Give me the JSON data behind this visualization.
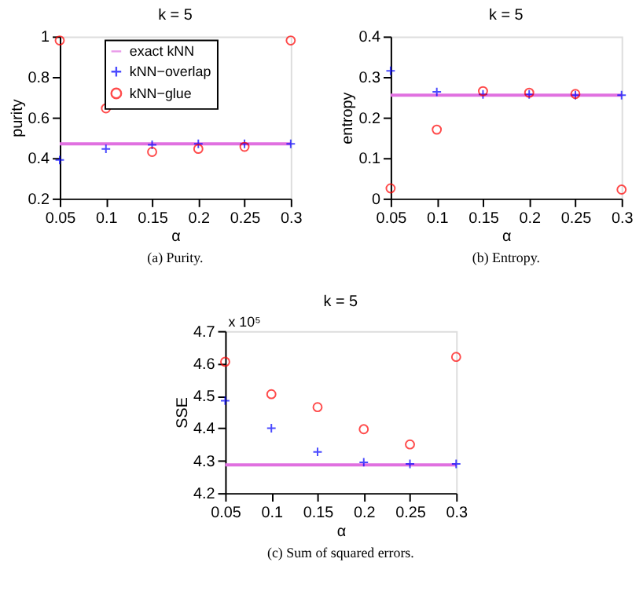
{
  "chart_data": [
    {
      "type": "scatter",
      "title": "k = 5",
      "xlabel": "α",
      "ylabel": "purity",
      "xlim": [
        0.05,
        0.3
      ],
      "xticks": [
        0.05,
        0.1,
        0.15,
        0.2,
        0.25,
        0.3
      ],
      "ylim": [
        0.2,
        1
      ],
      "yticks": [
        0.2,
        0.4,
        0.6,
        0.8,
        1
      ],
      "grid": false,
      "legend": "top",
      "x": [
        0.05,
        0.1,
        0.15,
        0.2,
        0.25,
        0.3
      ],
      "series": [
        {
          "name": "exact kNN",
          "type": "line",
          "color": "#e070e0",
          "marker": "none",
          "line_style": "solid",
          "values": [
            0.47,
            0.47,
            0.47,
            0.47,
            0.47,
            0.47
          ]
        },
        {
          "name": "kNN−overlap",
          "color": "#0000ff",
          "marker": "cross",
          "values": [
            0.39,
            0.445,
            0.465,
            0.47,
            0.47,
            0.47
          ]
        },
        {
          "name": "kNN−glue",
          "color": "#ff0000",
          "marker": "circle",
          "values": [
            0.98,
            0.645,
            0.43,
            0.445,
            0.455,
            0.98
          ]
        }
      ],
      "annotations": [
        "(a)  Purity."
      ]
    },
    {
      "type": "scatter",
      "title": "k = 5",
      "xlabel": "α",
      "ylabel": "entropy",
      "xlim": [
        0.05,
        0.3
      ],
      "xticks": [
        0.05,
        0.1,
        0.15,
        0.2,
        0.25,
        0.3
      ],
      "ylim": [
        0,
        0.4
      ],
      "yticks": [
        0,
        0.1,
        0.2,
        0.3,
        0.4
      ],
      "grid": false,
      "legend": "bottom",
      "x": [
        0.05,
        0.1,
        0.15,
        0.2,
        0.25,
        0.3
      ],
      "series": [
        {
          "name": "exact kNN",
          "type": "line",
          "color": "#e070e0",
          "marker": "none",
          "line_style": "solid",
          "values": [
            0.255,
            0.255,
            0.255,
            0.255,
            0.255,
            0.255
          ]
        },
        {
          "name": "kNN−overlap",
          "color": "#0000ff",
          "marker": "cross",
          "values": [
            0.315,
            0.263,
            0.257,
            0.257,
            0.255,
            0.255
          ]
        },
        {
          "name": "kNN−glue",
          "color": "#ff0000",
          "marker": "circle",
          "values": [
            0.025,
            0.17,
            0.265,
            0.261,
            0.258,
            0.022
          ]
        }
      ],
      "annotations": [
        "(b)  Entropy."
      ]
    },
    {
      "type": "scatter",
      "title": "k = 5",
      "xlabel": "α",
      "ylabel": "SSE",
      "xlim": [
        0.05,
        0.3
      ],
      "xticks": [
        0.05,
        0.1,
        0.15,
        0.2,
        0.25,
        0.3
      ],
      "ylim": [
        4.2,
        4.7
      ],
      "yticks": [
        4.2,
        4.3,
        4.4,
        4.5,
        4.6,
        4.7
      ],
      "grid": false,
      "legend": "top",
      "x": [
        0.05,
        0.1,
        0.15,
        0.2,
        0.25,
        0.3
      ],
      "series": [
        {
          "name": "exact kNN",
          "type": "line",
          "color": "#e070e0",
          "marker": "none",
          "line_style": "solid",
          "values": [
            4.287,
            4.287,
            4.287,
            4.287,
            4.287,
            4.287
          ]
        },
        {
          "name": "kNN−overlap",
          "color": "#0000ff",
          "marker": "cross",
          "values": [
            4.485,
            4.4,
            4.327,
            4.295,
            4.29,
            4.29
          ]
        },
        {
          "name": "kNN−glue",
          "color": "#ff0000",
          "marker": "circle",
          "values": [
            4.605,
            4.505,
            4.465,
            4.397,
            4.35,
            4.62
          ]
        }
      ],
      "annotations": [
        "x 10⁵",
        "(c)  Sum of squared errors."
      ]
    }
  ]
}
